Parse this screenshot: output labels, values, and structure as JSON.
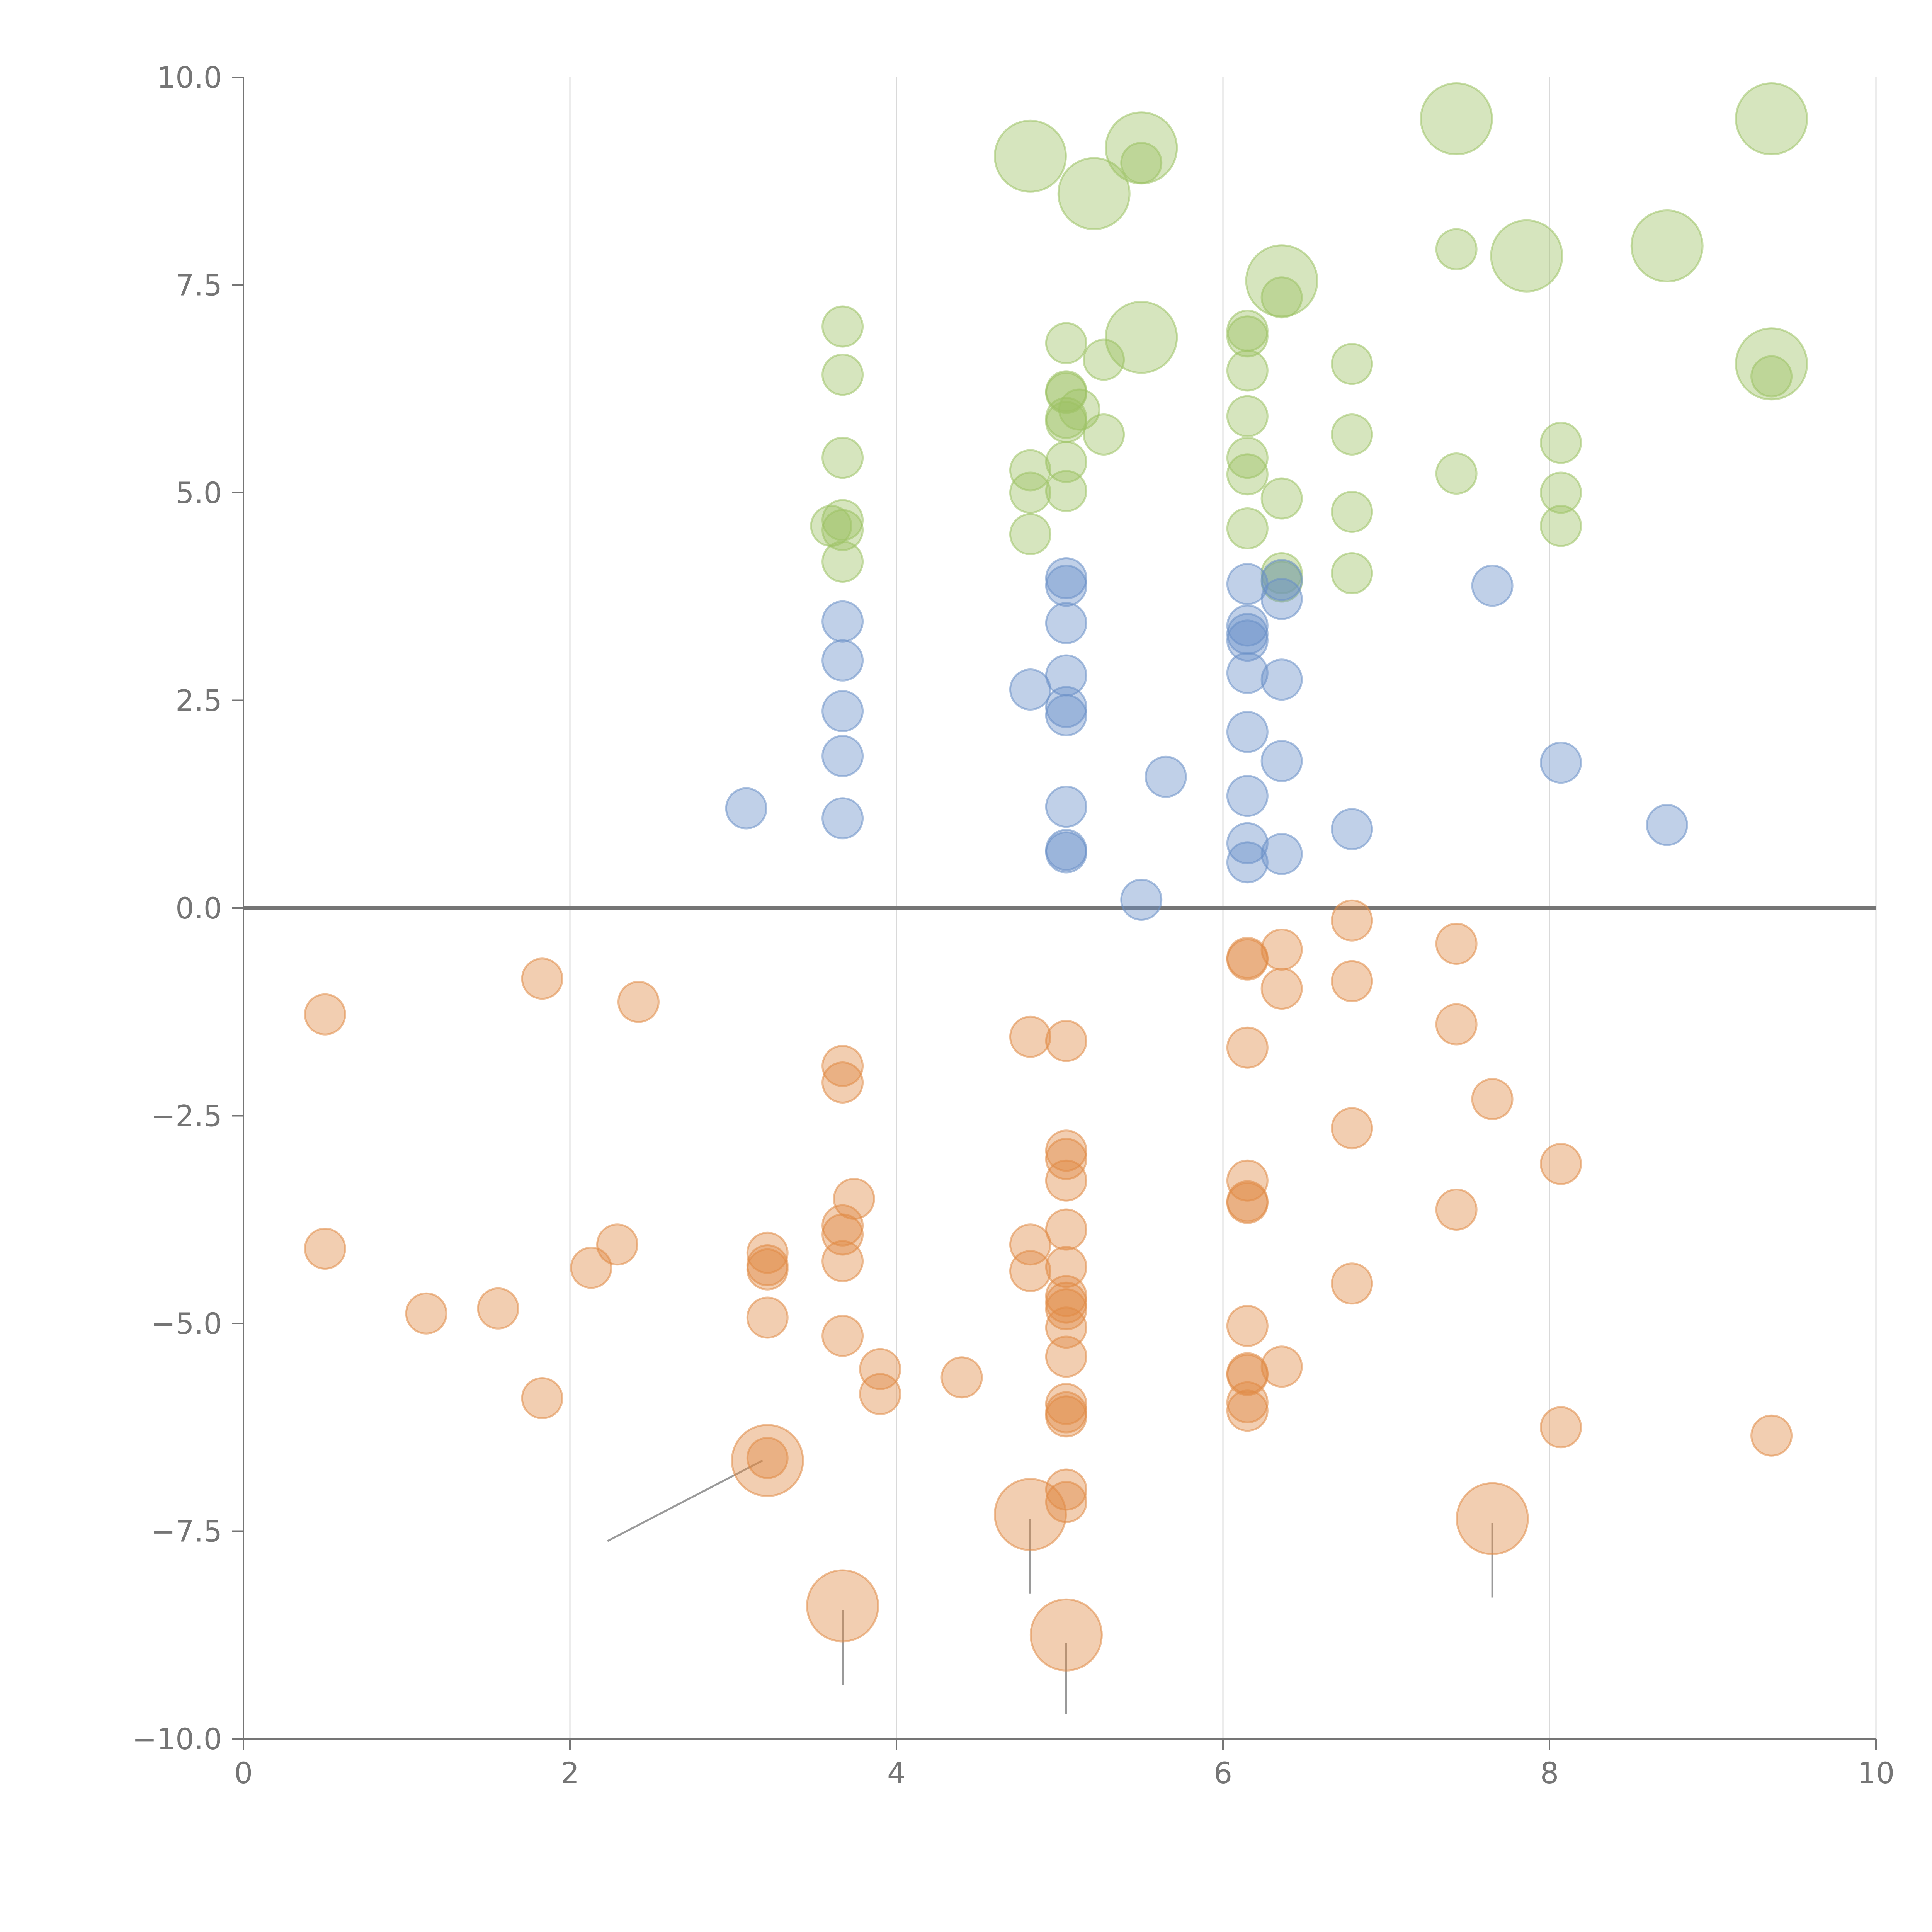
{
  "chart_data": {
    "type": "scatter",
    "title": "",
    "xlabel": "",
    "ylabel": "",
    "xlim": [
      0,
      10
    ],
    "ylim": [
      -10,
      10
    ],
    "grid": "vertical-only",
    "x_ticks": [
      0,
      2,
      4,
      6,
      8,
      10
    ],
    "x_tick_labels": [
      "0",
      "2",
      "4",
      "6",
      "8",
      "10"
    ],
    "y_ticks": [
      10,
      7.5,
      5,
      2.5,
      0,
      -2.5,
      -5,
      -7.5,
      -10
    ],
    "y_tick_labels": [
      "10.0",
      "7.5",
      "5.0",
      "2.5",
      "0.0",
      "−2.5",
      "−5.0",
      "−7.5",
      "−10.0"
    ],
    "reference_line_y": 0,
    "colors": {
      "green": "#9dc264",
      "blue": "#6a8fc7",
      "orange": "#e08a45",
      "axis": "#757575",
      "grid": "#d9d9d9",
      "leader": "#9a9a9a"
    },
    "series": [
      {
        "name": "green",
        "color": "#9dc264",
        "points": [
          [
            3.67,
            7.0
          ],
          [
            3.67,
            6.42
          ],
          [
            3.67,
            5.42
          ],
          [
            3.67,
            4.67
          ],
          [
            3.67,
            4.55
          ],
          [
            3.6,
            4.6
          ],
          [
            3.67,
            4.17
          ],
          [
            4.82,
            5.27
          ],
          [
            4.82,
            5.0
          ],
          [
            4.82,
            4.5
          ],
          [
            5.04,
            6.8
          ],
          [
            5.04,
            6.22
          ],
          [
            5.04,
            6.2
          ],
          [
            5.04,
            5.9
          ],
          [
            5.04,
            5.85
          ],
          [
            5.12,
            6.0
          ],
          [
            5.04,
            5.37
          ],
          [
            5.04,
            5.02
          ],
          [
            5.27,
            6.6
          ],
          [
            5.27,
            5.7
          ],
          [
            5.5,
            8.97
          ],
          [
            6.15,
            6.95
          ],
          [
            6.15,
            6.88
          ],
          [
            6.15,
            6.47
          ],
          [
            6.15,
            5.92
          ],
          [
            6.15,
            5.42
          ],
          [
            6.15,
            5.22
          ],
          [
            6.15,
            4.57
          ],
          [
            6.36,
            7.35
          ],
          [
            6.36,
            4.93
          ],
          [
            6.36,
            4.03
          ],
          [
            6.36,
            3.93
          ],
          [
            6.79,
            6.55
          ],
          [
            6.79,
            5.7
          ],
          [
            6.79,
            4.77
          ],
          [
            6.79,
            4.03
          ],
          [
            7.43,
            7.93
          ],
          [
            7.43,
            5.23
          ],
          [
            8.07,
            5.6
          ],
          [
            8.07,
            5.0
          ],
          [
            8.07,
            4.6
          ],
          [
            9.36,
            6.4
          ]
        ]
      },
      {
        "name": "green-large",
        "color": "#9dc264",
        "points": [
          [
            4.82,
            9.05
          ],
          [
            5.21,
            8.6
          ],
          [
            5.5,
            9.15
          ],
          [
            5.5,
            6.87
          ],
          [
            6.36,
            7.55
          ],
          [
            7.43,
            9.5
          ],
          [
            7.86,
            7.85
          ],
          [
            8.72,
            7.97
          ],
          [
            9.36,
            9.5
          ],
          [
            9.36,
            6.55
          ]
        ]
      },
      {
        "name": "blue",
        "color": "#6a8fc7",
        "points": [
          [
            3.08,
            1.2
          ],
          [
            3.67,
            3.45
          ],
          [
            3.67,
            2.98
          ],
          [
            3.67,
            2.37
          ],
          [
            3.67,
            1.83
          ],
          [
            3.67,
            1.08
          ],
          [
            4.82,
            2.63
          ],
          [
            5.04,
            3.97
          ],
          [
            5.04,
            3.88
          ],
          [
            5.04,
            3.43
          ],
          [
            5.04,
            2.8
          ],
          [
            5.04,
            2.42
          ],
          [
            5.04,
            2.32
          ],
          [
            5.04,
            1.22
          ],
          [
            5.04,
            0.7
          ],
          [
            5.04,
            0.67
          ],
          [
            5.5,
            0.1
          ],
          [
            5.65,
            1.58
          ],
          [
            6.15,
            3.9
          ],
          [
            6.15,
            3.4
          ],
          [
            6.15,
            3.3
          ],
          [
            6.15,
            3.22
          ],
          [
            6.15,
            2.83
          ],
          [
            6.15,
            2.12
          ],
          [
            6.15,
            1.35
          ],
          [
            6.15,
            0.78
          ],
          [
            6.15,
            0.55
          ],
          [
            6.36,
            3.95
          ],
          [
            6.36,
            3.72
          ],
          [
            6.36,
            2.75
          ],
          [
            6.36,
            1.77
          ],
          [
            6.36,
            0.65
          ],
          [
            6.79,
            0.95
          ],
          [
            7.65,
            3.88
          ],
          [
            8.07,
            1.75
          ],
          [
            8.72,
            1.0
          ]
        ]
      },
      {
        "name": "orange",
        "color": "#e08a45",
        "points": [
          [
            0.5,
            -1.28
          ],
          [
            0.5,
            -4.1
          ],
          [
            1.12,
            -4.88
          ],
          [
            1.56,
            -4.82
          ],
          [
            1.83,
            -0.85
          ],
          [
            1.83,
            -5.9
          ],
          [
            2.13,
            -4.33
          ],
          [
            2.29,
            -4.05
          ],
          [
            2.42,
            -1.13
          ],
          [
            3.21,
            -4.15
          ],
          [
            3.21,
            -4.3
          ],
          [
            3.21,
            -4.35
          ],
          [
            3.21,
            -4.93
          ],
          [
            3.21,
            -6.62
          ],
          [
            3.67,
            -1.9
          ],
          [
            3.67,
            -2.1
          ],
          [
            3.67,
            -3.82
          ],
          [
            3.67,
            -3.93
          ],
          [
            3.67,
            -4.25
          ],
          [
            3.67,
            -5.15
          ],
          [
            3.74,
            -3.5
          ],
          [
            3.9,
            -5.55
          ],
          [
            3.9,
            -5.85
          ],
          [
            4.4,
            -5.65
          ],
          [
            4.82,
            -1.55
          ],
          [
            4.82,
            -4.05
          ],
          [
            4.82,
            -4.37
          ],
          [
            5.04,
            -1.6
          ],
          [
            5.04,
            -2.92
          ],
          [
            5.04,
            -3.02
          ],
          [
            5.04,
            -3.28
          ],
          [
            5.04,
            -3.87
          ],
          [
            5.04,
            -4.32
          ],
          [
            5.04,
            -4.67
          ],
          [
            5.04,
            -4.75
          ],
          [
            5.04,
            -4.83
          ],
          [
            5.04,
            -5.05
          ],
          [
            5.04,
            -5.4
          ],
          [
            5.04,
            -5.97
          ],
          [
            5.04,
            -6.07
          ],
          [
            5.04,
            -6.12
          ],
          [
            5.04,
            -7.0
          ],
          [
            5.04,
            -7.15
          ],
          [
            6.15,
            -0.6
          ],
          [
            6.15,
            -0.62
          ],
          [
            6.15,
            -1.68
          ],
          [
            6.15,
            -3.28
          ],
          [
            6.15,
            -3.53
          ],
          [
            6.15,
            -3.55
          ],
          [
            6.15,
            -5.03
          ],
          [
            6.15,
            -5.6
          ],
          [
            6.15,
            -5.62
          ],
          [
            6.15,
            -5.95
          ],
          [
            6.15,
            -6.05
          ],
          [
            6.36,
            -0.5
          ],
          [
            6.36,
            -0.97
          ],
          [
            6.36,
            -5.52
          ],
          [
            6.79,
            -0.15
          ],
          [
            6.79,
            -0.88
          ],
          [
            6.79,
            -2.65
          ],
          [
            6.79,
            -4.52
          ],
          [
            7.43,
            -0.43
          ],
          [
            7.43,
            -1.4
          ],
          [
            7.43,
            -3.63
          ],
          [
            7.65,
            -2.3
          ],
          [
            8.07,
            -3.08
          ],
          [
            8.07,
            -6.25
          ],
          [
            9.36,
            -6.35
          ]
        ]
      },
      {
        "name": "orange-large",
        "color": "#e08a45",
        "points": [
          [
            3.21,
            -6.65
          ],
          [
            3.67,
            -8.4
          ],
          [
            4.82,
            -7.3
          ],
          [
            5.04,
            -8.75
          ],
          [
            7.65,
            -7.35
          ]
        ]
      }
    ],
    "leader_lines": [
      [
        2.23,
        -7.62,
        3.18,
        -6.65
      ],
      [
        3.67,
        -8.45,
        3.67,
        -9.35
      ],
      [
        4.82,
        -7.35,
        4.82,
        -8.25
      ],
      [
        5.04,
        -8.85,
        5.04,
        -9.7
      ],
      [
        7.65,
        -7.4,
        7.65,
        -8.3
      ]
    ]
  }
}
